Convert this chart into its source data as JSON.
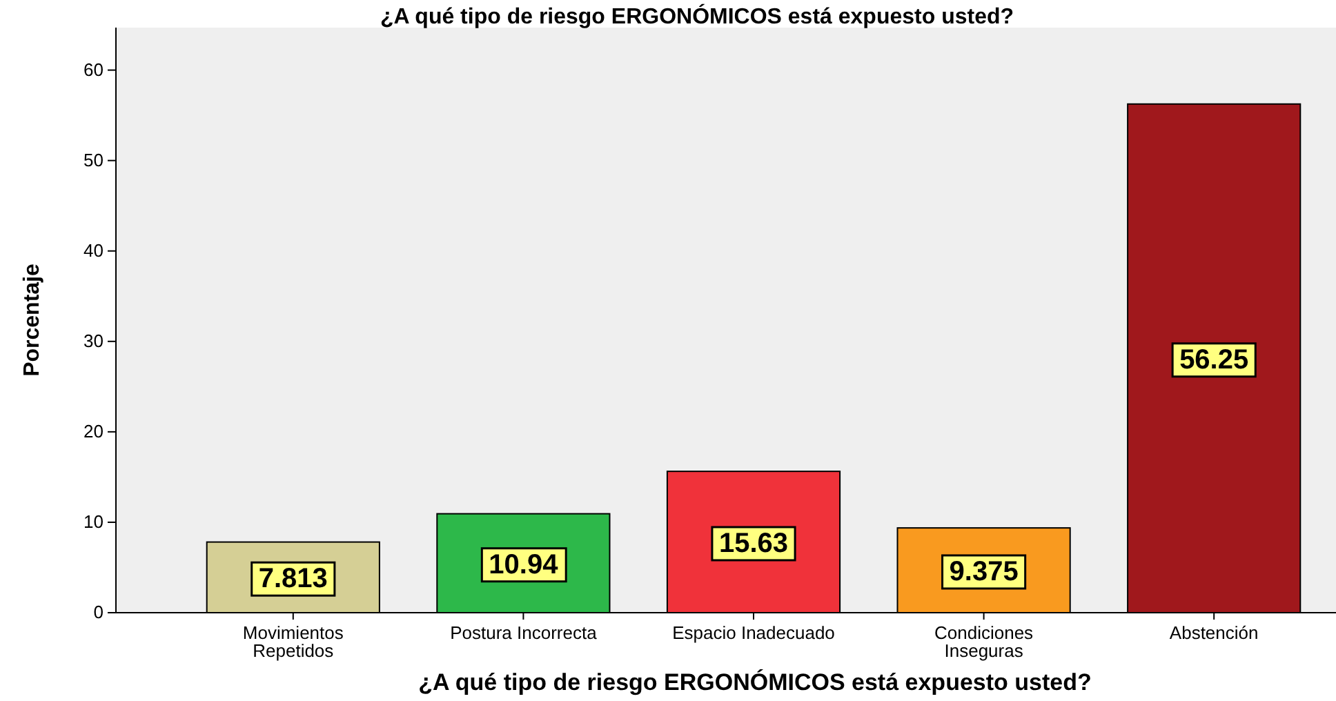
{
  "chart_data": {
    "type": "bar",
    "title": "¿A qué tipo de riesgo ERGONÓMICOS está expuesto usted?",
    "xlabel": "¿A qué tipo de riesgo ERGONÓMICOS está expuesto usted?",
    "ylabel": "Porcentaje",
    "categories": [
      "Movimientos Repetidos",
      "Postura Incorrecta",
      "Espacio Inadecuado",
      "Condiciones Inseguras",
      "Abstención"
    ],
    "values": [
      7.813,
      10.94,
      15.63,
      9.375,
      56.25
    ],
    "colors": [
      "#d5cf95",
      "#2db84a",
      "#f0323a",
      "#f99a1f",
      "#a0181c"
    ],
    "ylim": [
      0,
      64.7
    ],
    "yticks": [
      0,
      10,
      20,
      30,
      40,
      50,
      60
    ],
    "data_labels": true,
    "grid": false
  }
}
